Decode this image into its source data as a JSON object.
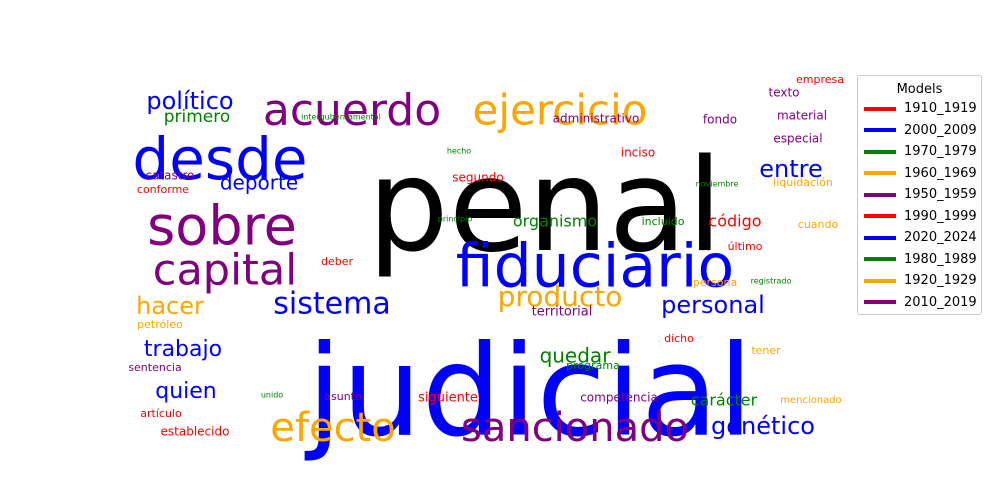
{
  "chart_data": {
    "type": "wordcloud",
    "legend": {
      "title": "Models",
      "placement": "right",
      "items": [
        {
          "label": "1910_1919",
          "color": "#ff0000"
        },
        {
          "label": "2000_2009",
          "color": "#0000ff"
        },
        {
          "label": "1970_1979",
          "color": "#008000"
        },
        {
          "label": "1960_1969",
          "color": "#ffa500"
        },
        {
          "label": "1950_1959",
          "color": "#800080"
        },
        {
          "label": "1990_1999",
          "color": "#ff0000"
        },
        {
          "label": "2020_2024",
          "color": "#0000ff"
        },
        {
          "label": "1980_1989",
          "color": "#008000"
        },
        {
          "label": "1920_1929",
          "color": "#ffa500"
        },
        {
          "label": "2010_2019",
          "color": "#800080"
        }
      ]
    },
    "words": [
      {
        "text": "penal",
        "color": "#000000",
        "weight": 100
      },
      {
        "text": "judicial",
        "color": "#0000ff",
        "weight": 97
      },
      {
        "text": "fiduciario",
        "color": "#0000ff",
        "weight": 44
      },
      {
        "text": "desde",
        "color": "#0000ff",
        "weight": 40
      },
      {
        "text": "sobre",
        "color": "#800080",
        "weight": 38
      },
      {
        "text": "acuerdo",
        "color": "#800080",
        "weight": 31
      },
      {
        "text": "ejercicio",
        "color": "#ffa500",
        "weight": 30
      },
      {
        "text": "capital",
        "color": "#800080",
        "weight": 30
      },
      {
        "text": "sancionado",
        "color": "#800080",
        "weight": 29
      },
      {
        "text": "efecto",
        "color": "#ffa500",
        "weight": 29
      },
      {
        "text": "sistema",
        "color": "#0000ff",
        "weight": 22
      },
      {
        "text": "producto",
        "color": "#ffa500",
        "weight": 20
      },
      {
        "text": "político",
        "color": "#0000ff",
        "weight": 18
      },
      {
        "text": "hacer",
        "color": "#ffa500",
        "weight": 17
      },
      {
        "text": "personal",
        "color": "#0000ff",
        "weight": 17
      },
      {
        "text": "genético",
        "color": "#0000ff",
        "weight": 17
      },
      {
        "text": "entre",
        "color": "#0000ff",
        "weight": 16
      },
      {
        "text": "trabajo",
        "color": "#0000ff",
        "weight": 16
      },
      {
        "text": "quien",
        "color": "#0000ff",
        "weight": 15
      },
      {
        "text": "deporte",
        "color": "#0000ff",
        "weight": 14
      },
      {
        "text": "quedar",
        "color": "#008000",
        "weight": 14
      },
      {
        "text": "primero",
        "color": "#008000",
        "weight": 12
      },
      {
        "text": "organismo",
        "color": "#008000",
        "weight": 11
      },
      {
        "text": "código",
        "color": "#ff0000",
        "weight": 11
      },
      {
        "text": "carácter",
        "color": "#008000",
        "weight": 11
      },
      {
        "text": "territorial",
        "color": "#800080",
        "weight": 9
      },
      {
        "text": "siguiente",
        "color": "#ff0000",
        "weight": 9
      },
      {
        "text": "establecido",
        "color": "#ff0000",
        "weight": 8
      },
      {
        "text": "competencia",
        "color": "#800080",
        "weight": 8
      },
      {
        "text": "administrativo",
        "color": "#800080",
        "weight": 8
      },
      {
        "text": "catastro",
        "color": "#800080",
        "weight": 8
      },
      {
        "text": "conforme",
        "color": "#ff0000",
        "weight": 7
      },
      {
        "text": "segundo",
        "color": "#ff0000",
        "weight": 8
      },
      {
        "text": "inciso",
        "color": "#ff0000",
        "weight": 8
      },
      {
        "text": "fondo",
        "color": "#800080",
        "weight": 8
      },
      {
        "text": "material",
        "color": "#800080",
        "weight": 8
      },
      {
        "text": "texto",
        "color": "#800080",
        "weight": 8
      },
      {
        "text": "empresa",
        "color": "#ff0000",
        "weight": 7
      },
      {
        "text": "especial",
        "color": "#800080",
        "weight": 8
      },
      {
        "text": "liquidación",
        "color": "#ffa500",
        "weight": 7
      },
      {
        "text": "cuando",
        "color": "#ffa500",
        "weight": 7
      },
      {
        "text": "último",
        "color": "#ff0000",
        "weight": 7
      },
      {
        "text": "incluido",
        "color": "#008000",
        "weight": 7
      },
      {
        "text": "deber",
        "color": "#ff0000",
        "weight": 7
      },
      {
        "text": "persona",
        "color": "#ffa500",
        "weight": 7
      },
      {
        "text": "petróleo",
        "color": "#ffa500",
        "weight": 7
      },
      {
        "text": "sentencia",
        "color": "#800080",
        "weight": 7
      },
      {
        "text": "artículo",
        "color": "#ff0000",
        "weight": 7
      },
      {
        "text": "asunto",
        "color": "#800080",
        "weight": 7
      },
      {
        "text": "programa",
        "color": "#008000",
        "weight": 7
      },
      {
        "text": "dicho",
        "color": "#ff0000",
        "weight": 7
      },
      {
        "text": "tener",
        "color": "#ffa500",
        "weight": 7
      },
      {
        "text": "mencionado",
        "color": "#ffa500",
        "weight": 6
      },
      {
        "text": "intergubernamental",
        "color": "#008000",
        "weight": 4
      },
      {
        "text": "hecho",
        "color": "#008000",
        "weight": 4
      },
      {
        "text": "principio",
        "color": "#008000",
        "weight": 4
      },
      {
        "text": "noviembre",
        "color": "#008000",
        "weight": 4
      },
      {
        "text": "registrado",
        "color": "#008000",
        "weight": 4
      },
      {
        "text": "unido",
        "color": "#008000",
        "weight": 4
      }
    ]
  }
}
